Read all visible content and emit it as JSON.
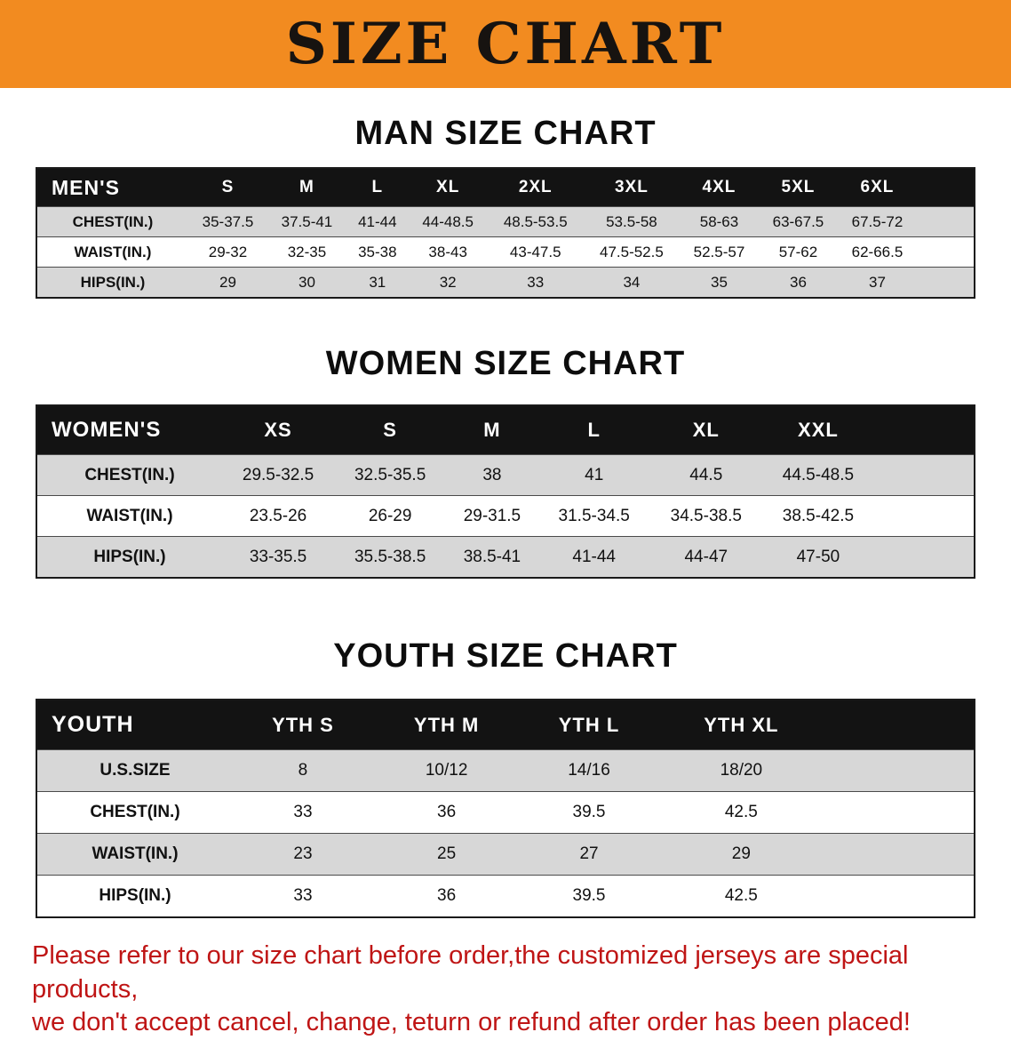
{
  "theme": {
    "banner_bg": "#f28b20",
    "title_color": "#171310",
    "header_bg": "#131313",
    "header_text": "#ffffff",
    "row_shade": "#d7d7d7",
    "notice_color": "#bf1515"
  },
  "banner": {
    "title": "SIZE CHART"
  },
  "chart_data": [
    {
      "type": "table",
      "title": "MAN SIZE CHART",
      "header": [
        "MEN'S",
        "S",
        "M",
        "L",
        "XL",
        "2XL",
        "3XL",
        "4XL",
        "5XL",
        "6XL"
      ],
      "rows": [
        [
          "CHEST(IN.)",
          "35-37.5",
          "37.5-41",
          "41-44",
          "44-48.5",
          "48.5-53.5",
          "53.5-58",
          "58-63",
          "63-67.5",
          "67.5-72"
        ],
        [
          "WAIST(IN.)",
          "29-32",
          "32-35",
          "35-38",
          "38-43",
          "43-47.5",
          "47.5-52.5",
          "52.5-57",
          "57-62",
          "62-66.5"
        ],
        [
          "HIPS(IN.)",
          "29",
          "30",
          "31",
          "32",
          "33",
          "34",
          "35",
          "36",
          "37"
        ]
      ]
    },
    {
      "type": "table",
      "title": "WOMEN SIZE CHART",
      "header": [
        "WOMEN'S",
        "XS",
        "S",
        "M",
        "L",
        "XL",
        "XXL"
      ],
      "rows": [
        [
          "CHEST(IN.)",
          "29.5-32.5",
          "32.5-35.5",
          "38",
          "41",
          "44.5",
          "44.5-48.5"
        ],
        [
          "WAIST(IN.)",
          "23.5-26",
          "26-29",
          "29-31.5",
          "31.5-34.5",
          "34.5-38.5",
          "38.5-42.5"
        ],
        [
          "HIPS(IN.)",
          "33-35.5",
          "35.5-38.5",
          "38.5-41",
          "41-44",
          "44-47",
          "47-50"
        ]
      ]
    },
    {
      "type": "table",
      "title": "YOUTH SIZE CHART",
      "header": [
        "YOUTH",
        "YTH S",
        "YTH M",
        "YTH L",
        "YTH XL"
      ],
      "rows": [
        [
          "U.S.SIZE",
          "8",
          "10/12",
          "14/16",
          "18/20"
        ],
        [
          "CHEST(IN.)",
          "33",
          "36",
          "39.5",
          "42.5"
        ],
        [
          "WAIST(IN.)",
          "23",
          "25",
          "27",
          "29"
        ],
        [
          "HIPS(IN.)",
          "33",
          "36",
          "39.5",
          "42.5"
        ]
      ]
    }
  ],
  "notice": {
    "lines": [
      "Please refer to our size chart before order,the customized jerseys are special products,",
      "we don't accept cancel, change, teturn or refund after order has been placed!"
    ]
  }
}
